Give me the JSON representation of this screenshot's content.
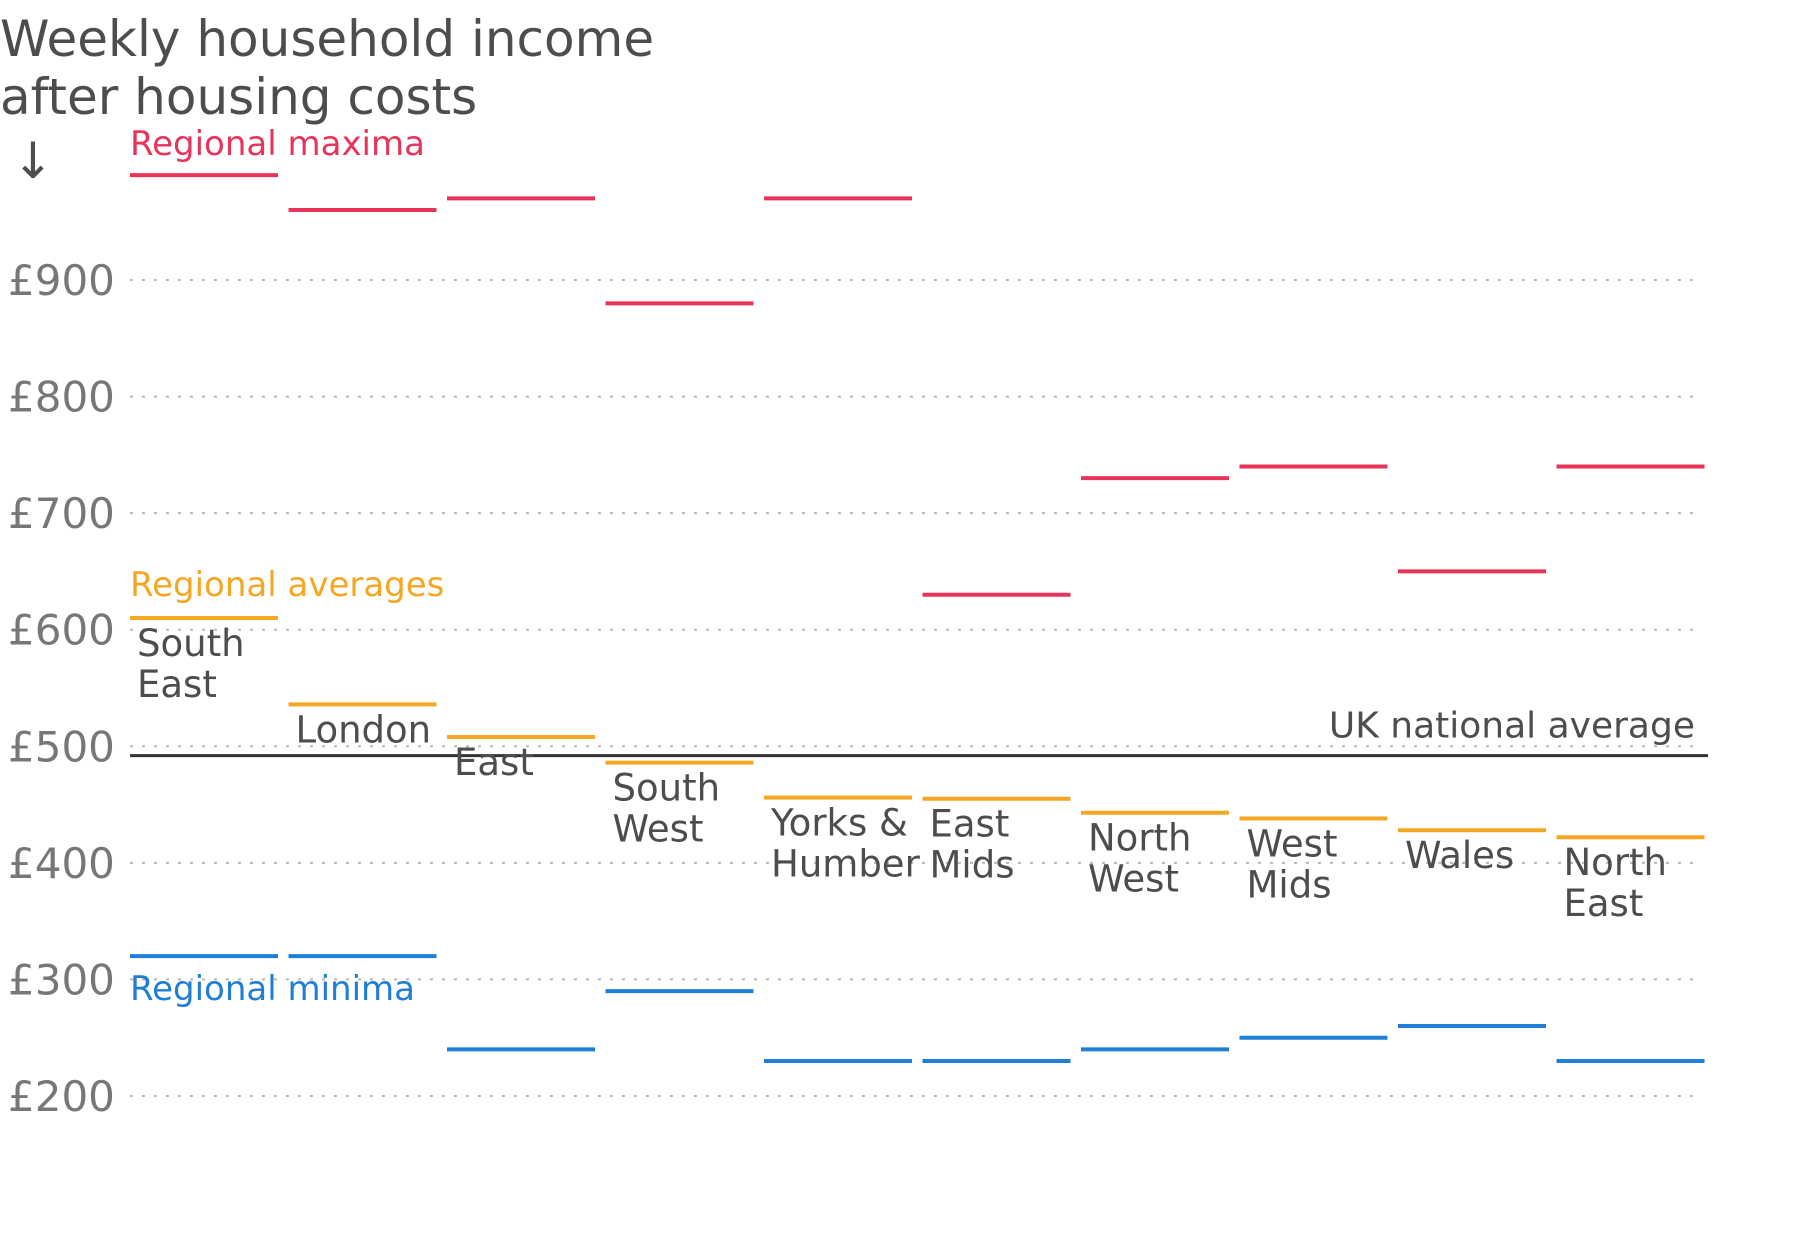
{
  "chart_data": {
    "type": "line",
    "title": [
      "Weekly household income",
      "after housing costs"
    ],
    "arrow": "↓",
    "ylim": [
      200,
      1000
    ],
    "yticks": [
      200,
      300,
      400,
      500,
      600,
      700,
      800,
      900
    ],
    "ytick_labels": [
      "£200",
      "£300",
      "£400",
      "£500",
      "£600",
      "£700",
      "£800",
      "£900"
    ],
    "grid": true,
    "categories": [
      "South East",
      "London",
      "East",
      "South West",
      "Yorks & Humber",
      "East Mids",
      "North West",
      "West Mids",
      "Wales",
      "North East"
    ],
    "category_labels": [
      [
        "South",
        "East"
      ],
      [
        "London"
      ],
      [
        "East"
      ],
      [
        "South",
        "West"
      ],
      [
        "Yorks &",
        "Humber"
      ],
      [
        "East",
        "Mids"
      ],
      [
        "North",
        "West"
      ],
      [
        "West",
        "Mids"
      ],
      [
        "Wales"
      ],
      [
        "North",
        "East"
      ]
    ],
    "series": [
      {
        "name": "Regional maxima",
        "color": "#e8345a",
        "values": [
          990,
          960,
          970,
          880,
          970,
          630,
          730,
          740,
          650,
          740
        ]
      },
      {
        "name": "Regional averages",
        "color": "#f5a623",
        "values": [
          610,
          536,
          508,
          486,
          456,
          455,
          443,
          438,
          428,
          422
        ]
      },
      {
        "name": "Regional minima",
        "color": "#1f7fd6",
        "values": [
          320,
          320,
          240,
          290,
          230,
          230,
          240,
          250,
          260,
          230
        ]
      }
    ],
    "reference_line": {
      "label": "UK national average",
      "value": 492,
      "color": "#333333"
    }
  }
}
